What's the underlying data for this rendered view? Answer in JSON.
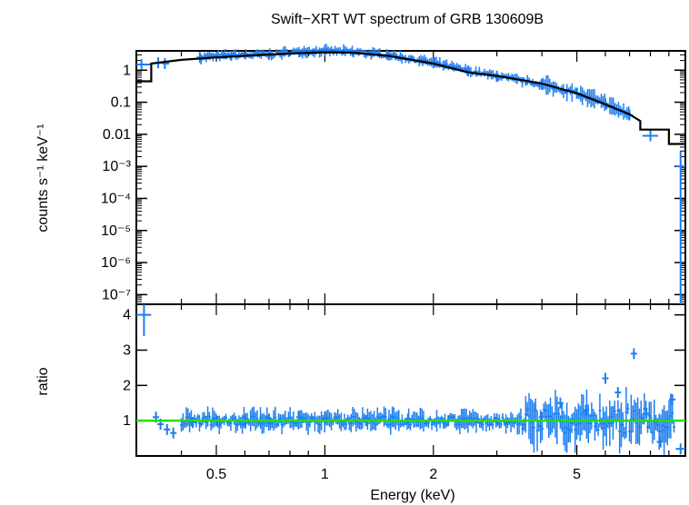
{
  "chart_data": [
    {
      "type": "scatter",
      "panel": "spectrum",
      "title": "Swift−XRT WT spectrum of GRB 130609B",
      "ylabel": "counts s⁻¹ keV⁻¹",
      "xlabel": "Energy (keV)",
      "xscale": "log",
      "yscale": "log",
      "xlim": [
        0.3,
        10
      ],
      "ylim": [
        5e-08,
        4
      ],
      "y_ticks": [
        {
          "value": 1,
          "label": "1"
        },
        {
          "value": 0.1,
          "label": "0.1"
        },
        {
          "value": 0.01,
          "label": "0.01"
        },
        {
          "value": 0.001,
          "label": "10⁻³"
        },
        {
          "value": 0.0001,
          "label": "10⁻⁴"
        },
        {
          "value": 1e-05,
          "label": "10⁻⁵"
        },
        {
          "value": 1e-06,
          "label": "10⁻⁶"
        },
        {
          "value": 1e-07,
          "label": "10⁻⁷"
        }
      ],
      "colors": {
        "data": "#1e7ef0",
        "model": "#000000"
      },
      "series": [
        {
          "kind": "data",
          "points": [
            {
              "x": 0.31,
              "y": 1.5,
              "x_err": [
                0.3,
                0.33
              ]
            },
            {
              "x": 0.345,
              "y": 1.7,
              "x_err": [
                0.34,
                0.355
              ]
            },
            {
              "x": 0.36,
              "y": 1.6,
              "x_err": [
                0.355,
                0.37
              ]
            },
            {
              "x": 0.45,
              "y": 2.5
            },
            {
              "x": 0.55,
              "y": 2.9
            },
            {
              "x": 0.7,
              "y": 3.1
            },
            {
              "x": 0.85,
              "y": 3.8
            },
            {
              "x": 1.0,
              "y": 4.0
            },
            {
              "x": 1.2,
              "y": 3.7
            },
            {
              "x": 1.5,
              "y": 3.0
            },
            {
              "x": 2.0,
              "y": 1.7
            },
            {
              "x": 2.5,
              "y": 0.95
            },
            {
              "x": 3.0,
              "y": 0.65
            },
            {
              "x": 4.0,
              "y": 0.36
            },
            {
              "x": 5.0,
              "y": 0.19
            },
            {
              "x": 6.0,
              "y": 0.09
            },
            {
              "x": 7.0,
              "y": 0.04
            },
            {
              "x": 8.0,
              "y": 0.009,
              "x_err": [
                7.6,
                8.4
              ]
            },
            {
              "x": 9.7,
              "y": 0.001,
              "x_err": [
                9.4,
                10.0
              ],
              "y_err": [
                5e-08,
                0.003
              ]
            }
          ]
        },
        {
          "kind": "model",
          "points": [
            {
              "x": 0.3,
              "y": 0.45
            },
            {
              "x": 0.33,
              "y": 0.45
            },
            {
              "x": 0.33,
              "y": 1.6
            },
            {
              "x": 0.4,
              "y": 2.1
            },
            {
              "x": 0.5,
              "y": 2.5
            },
            {
              "x": 0.6,
              "y": 2.8
            },
            {
              "x": 0.8,
              "y": 3.3
            },
            {
              "x": 1.0,
              "y": 3.6
            },
            {
              "x": 1.2,
              "y": 3.5
            },
            {
              "x": 1.5,
              "y": 2.8
            },
            {
              "x": 2.0,
              "y": 1.6
            },
            {
              "x": 2.5,
              "y": 0.85
            },
            {
              "x": 3.0,
              "y": 0.66
            },
            {
              "x": 4.0,
              "y": 0.38
            },
            {
              "x": 5.0,
              "y": 0.19
            },
            {
              "x": 6.0,
              "y": 0.085
            },
            {
              "x": 7.0,
              "y": 0.042
            },
            {
              "x": 7.5,
              "y": 0.026
            },
            {
              "x": 7.5,
              "y": 0.014
            },
            {
              "x": 9.0,
              "y": 0.014
            },
            {
              "x": 9.0,
              "y": 0.005
            },
            {
              "x": 10.0,
              "y": 0.005
            }
          ]
        }
      ]
    },
    {
      "type": "scatter",
      "panel": "ratio",
      "ylabel": "ratio",
      "xlabel": "Energy (keV)",
      "xscale": "log",
      "xlim": [
        0.3,
        10
      ],
      "ylim": [
        0,
        4.3
      ],
      "x_ticks": [
        {
          "value": 0.5,
          "label": "0.5"
        },
        {
          "value": 1,
          "label": "1"
        },
        {
          "value": 2,
          "label": "2"
        },
        {
          "value": 5,
          "label": "5"
        }
      ],
      "y_ticks": [
        {
          "value": 1,
          "label": "1"
        },
        {
          "value": 2,
          "label": "2"
        },
        {
          "value": 3,
          "label": "3"
        },
        {
          "value": 4,
          "label": "4"
        }
      ],
      "reference_line": 1,
      "colors": {
        "data": "#1e7ef0",
        "reference": "#22dd11"
      },
      "series": [
        {
          "kind": "data",
          "points": [
            {
              "x": 0.315,
              "y": 4.0,
              "x_err": [
                0.3,
                0.33
              ],
              "y_err": [
                3.4,
                4.3
              ]
            },
            {
              "x": 0.34,
              "y": 1.1
            },
            {
              "x": 0.35,
              "y": 0.9
            },
            {
              "x": 0.365,
              "y": 0.75
            },
            {
              "x": 0.38,
              "y": 0.65
            },
            {
              "x": 0.43,
              "y": 0.95
            },
            {
              "x": 0.5,
              "y": 1.0
            },
            {
              "x": 0.6,
              "y": 1.0
            },
            {
              "x": 0.7,
              "y": 1.05
            },
            {
              "x": 0.85,
              "y": 1.1
            },
            {
              "x": 1.0,
              "y": 1.05
            },
            {
              "x": 1.3,
              "y": 1.0
            },
            {
              "x": 1.7,
              "y": 1.05
            },
            {
              "x": 2.2,
              "y": 1.0
            },
            {
              "x": 3.0,
              "y": 1.05
            },
            {
              "x": 4.0,
              "y": 1.1
            },
            {
              "x": 4.5,
              "y": 1.5
            },
            {
              "x": 5.3,
              "y": 1.3
            },
            {
              "x": 6.0,
              "y": 2.2
            },
            {
              "x": 6.5,
              "y": 1.8
            },
            {
              "x": 7.2,
              "y": 2.9
            },
            {
              "x": 7.8,
              "y": 1.2
            },
            {
              "x": 8.5,
              "y": 0.4
            },
            {
              "x": 9.2,
              "y": 1.6
            },
            {
              "x": 9.7,
              "y": 0.2,
              "x_err": [
                9.4,
                10.0
              ]
            }
          ]
        }
      ]
    }
  ]
}
